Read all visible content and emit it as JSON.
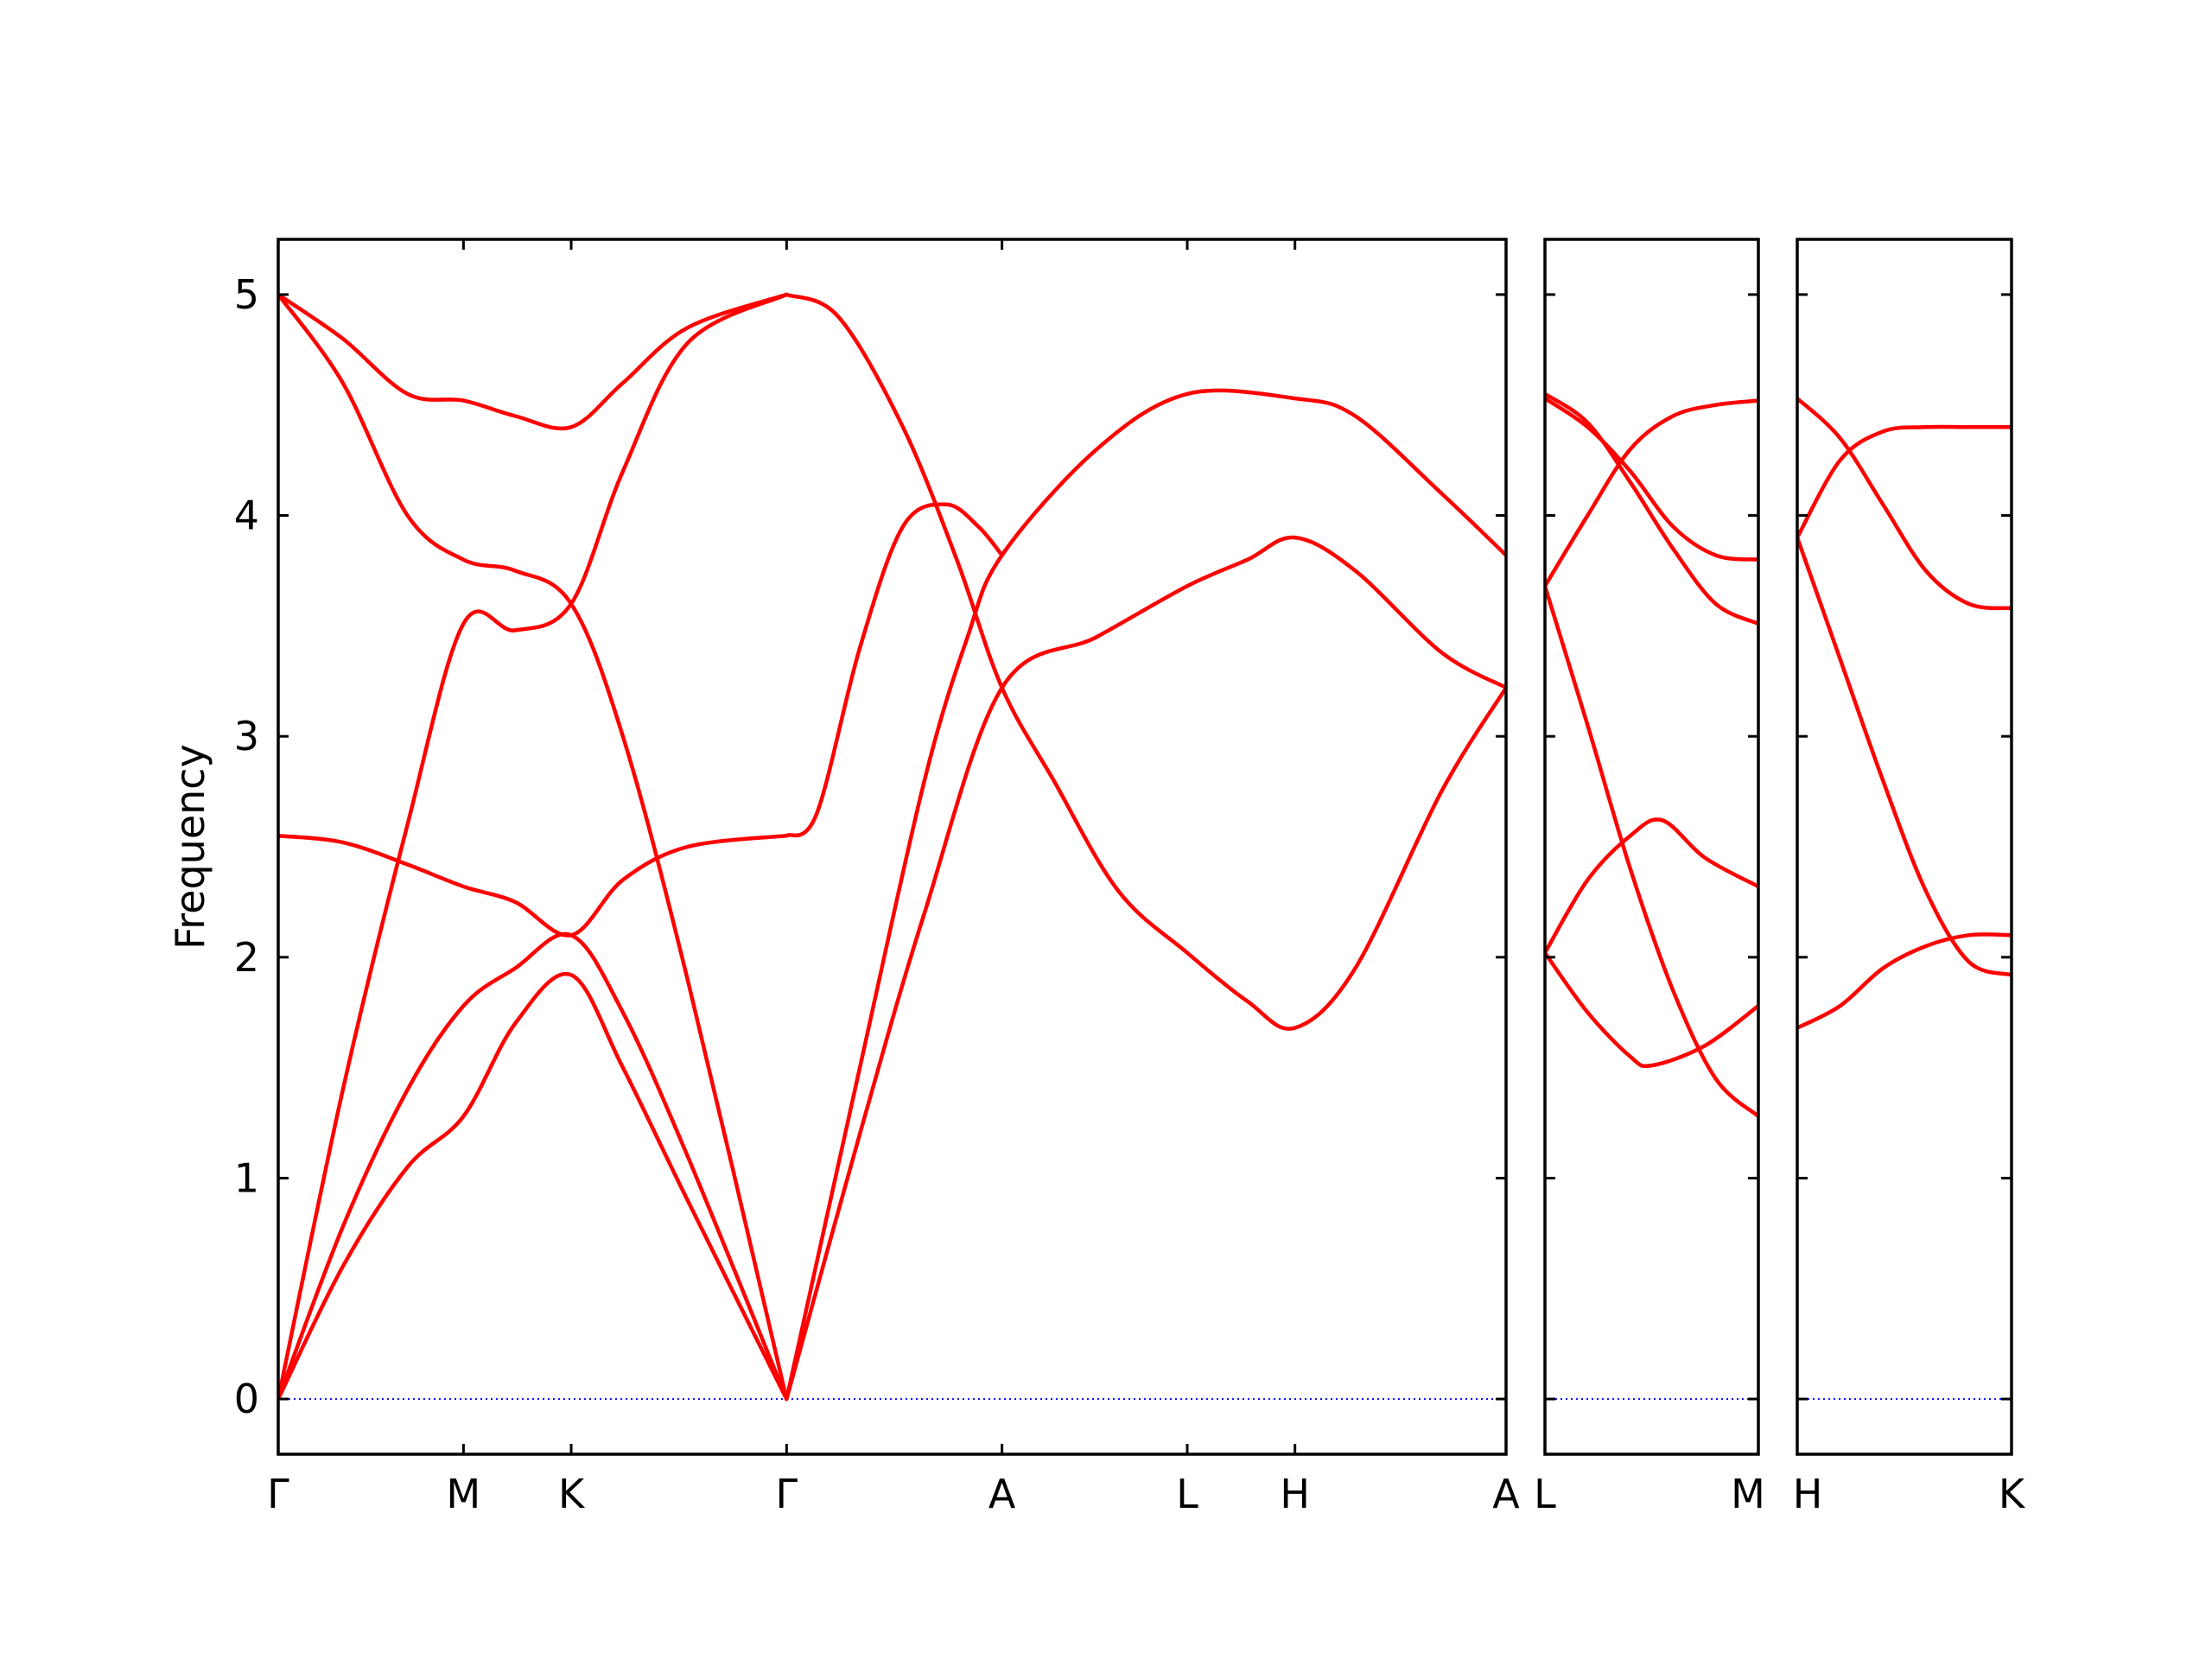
{
  "chart_data": {
    "type": "line",
    "title": "",
    "ylabel": "Frequency",
    "ylim": [
      -0.25,
      5.25
    ],
    "yticks": [
      0,
      1,
      2,
      3,
      4,
      5
    ],
    "yticklabels": [
      "0",
      "1",
      "2",
      "3",
      "4",
      "5"
    ],
    "colors": {
      "bands": "#ff0000",
      "zero_line": "#0000ff",
      "frame": "#000000"
    },
    "grid": false,
    "legend": "none",
    "panels": [
      {
        "name": "panel-1",
        "xlim": [
          0,
          5.7
        ],
        "ticks": [
          {
            "x": 0.0,
            "label": "Γ"
          },
          {
            "x": 0.86,
            "label": "M"
          },
          {
            "x": 1.36,
            "label": "K"
          },
          {
            "x": 2.36,
            "label": "Γ"
          },
          {
            "x": 3.36,
            "label": "A"
          },
          {
            "x": 4.22,
            "label": "L"
          },
          {
            "x": 4.72,
            "label": "H"
          },
          {
            "x": 5.7,
            "label": "A"
          }
        ],
        "series": [
          {
            "points": [
              [
                0,
                0
              ],
              [
                0.3,
                0.6
              ],
              [
                0.6,
                1.05
              ],
              [
                0.86,
                1.28
              ],
              [
                1.1,
                1.7
              ],
              [
                1.36,
                1.92
              ],
              [
                1.6,
                1.5
              ],
              [
                1.9,
                0.9
              ],
              [
                2.36,
                0
              ]
            ]
          },
          {
            "points": [
              [
                0,
                0
              ],
              [
                0.3,
                0.78
              ],
              [
                0.6,
                1.4
              ],
              [
                0.86,
                1.78
              ],
              [
                1.1,
                1.95
              ],
              [
                1.36,
                2.1
              ],
              [
                1.6,
                1.75
              ],
              [
                1.9,
                1.1
              ],
              [
                2.36,
                0
              ]
            ]
          },
          {
            "points": [
              [
                0,
                0
              ],
              [
                0.3,
                1.4
              ],
              [
                0.6,
                2.6
              ],
              [
                0.86,
                3.51
              ],
              [
                1.1,
                3.48
              ],
              [
                1.36,
                3.6
              ],
              [
                1.6,
                4.2
              ],
              [
                1.9,
                4.78
              ],
              [
                2.36,
                5.0
              ]
            ]
          },
          {
            "points": [
              [
                0,
                5.0
              ],
              [
                0.3,
                4.6
              ],
              [
                0.6,
                4.0
              ],
              [
                0.86,
                3.8
              ],
              [
                1.1,
                3.75
              ],
              [
                1.36,
                3.6
              ],
              [
                1.6,
                3.0
              ],
              [
                1.9,
                1.9
              ],
              [
                2.36,
                0
              ]
            ]
          },
          {
            "points": [
              [
                0,
                5.0
              ],
              [
                0.3,
                4.8
              ],
              [
                0.6,
                4.55
              ],
              [
                0.86,
                4.52
              ],
              [
                1.1,
                4.45
              ],
              [
                1.36,
                4.4
              ],
              [
                1.6,
                4.6
              ],
              [
                1.9,
                4.85
              ],
              [
                2.36,
                5.0
              ]
            ]
          },
          {
            "points": [
              [
                0,
                2.55
              ],
              [
                0.3,
                2.52
              ],
              [
                0.6,
                2.42
              ],
              [
                0.86,
                2.32
              ],
              [
                1.1,
                2.25
              ],
              [
                1.36,
                2.1
              ],
              [
                1.6,
                2.35
              ],
              [
                1.9,
                2.5
              ],
              [
                2.36,
                2.55
              ]
            ]
          },
          {
            "points": [
              [
                2.36,
                0
              ],
              [
                2.7,
                1.2
              ],
              [
                3.0,
                2.2
              ],
              [
                3.36,
                3.22
              ],
              [
                3.8,
                3.45
              ],
              [
                4.22,
                3.68
              ],
              [
                4.5,
                3.8
              ],
              [
                4.72,
                3.9
              ],
              [
                5.0,
                3.75
              ],
              [
                5.4,
                3.38
              ],
              [
                5.7,
                3.22
              ]
            ]
          },
          {
            "points": [
              [
                2.36,
                0
              ],
              [
                2.7,
                1.5
              ],
              [
                3.0,
                2.8
              ],
              [
                3.2,
                3.45
              ],
              [
                3.36,
                3.82
              ],
              [
                3.8,
                4.3
              ],
              [
                4.22,
                4.55
              ],
              [
                4.72,
                4.53
              ],
              [
                5.0,
                4.45
              ],
              [
                5.4,
                4.1
              ],
              [
                5.7,
                3.82
              ]
            ]
          },
          {
            "points": [
              [
                2.36,
                2.55
              ],
              [
                2.5,
                2.65
              ],
              [
                2.7,
                3.4
              ],
              [
                2.9,
                3.95
              ],
              [
                3.1,
                4.05
              ],
              [
                3.25,
                3.95
              ],
              [
                3.36,
                3.82
              ]
            ]
          },
          {
            "points": [
              [
                2.36,
                5.0
              ],
              [
                2.6,
                4.9
              ],
              [
                2.9,
                4.4
              ],
              [
                3.15,
                3.8
              ],
              [
                3.36,
                3.22
              ],
              [
                3.6,
                2.8
              ],
              [
                3.9,
                2.3
              ],
              [
                4.22,
                2.02
              ],
              [
                4.5,
                1.8
              ],
              [
                4.72,
                1.68
              ],
              [
                5.0,
                1.95
              ],
              [
                5.4,
                2.75
              ],
              [
                5.7,
                3.22
              ]
            ]
          }
        ]
      },
      {
        "name": "panel-2",
        "xlim": [
          0,
          1
        ],
        "ticks": [
          {
            "x": 0.0,
            "label": "L"
          },
          {
            "x": 1.0,
            "label": "M"
          }
        ],
        "series": [
          {
            "points": [
              [
                0,
                4.55
              ],
              [
                0.2,
                4.42
              ],
              [
                0.4,
                4.15
              ],
              [
                0.6,
                3.85
              ],
              [
                0.8,
                3.6
              ],
              [
                1.0,
                3.51
              ]
            ]
          },
          {
            "points": [
              [
                0,
                4.53
              ],
              [
                0.2,
                4.4
              ],
              [
                0.4,
                4.2
              ],
              [
                0.6,
                3.95
              ],
              [
                0.8,
                3.82
              ],
              [
                1.0,
                3.8
              ]
            ]
          },
          {
            "points": [
              [
                0,
                3.68
              ],
              [
                0.2,
                4.0
              ],
              [
                0.4,
                4.3
              ],
              [
                0.6,
                4.45
              ],
              [
                0.8,
                4.5
              ],
              [
                1.0,
                4.52
              ]
            ]
          },
          {
            "points": [
              [
                0,
                3.68
              ],
              [
                0.2,
                3.05
              ],
              [
                0.4,
                2.4
              ],
              [
                0.6,
                1.85
              ],
              [
                0.8,
                1.45
              ],
              [
                1.0,
                1.28
              ]
            ]
          },
          {
            "points": [
              [
                0,
                2.02
              ],
              [
                0.2,
                2.35
              ],
              [
                0.4,
                2.55
              ],
              [
                0.55,
                2.62
              ],
              [
                0.75,
                2.45
              ],
              [
                1.0,
                2.32
              ]
            ]
          },
          {
            "points": [
              [
                0,
                2.02
              ],
              [
                0.2,
                1.75
              ],
              [
                0.4,
                1.55
              ],
              [
                0.5,
                1.51
              ],
              [
                0.75,
                1.6
              ],
              [
                1.0,
                1.78
              ]
            ]
          }
        ]
      },
      {
        "name": "panel-3",
        "xlim": [
          0,
          1
        ],
        "ticks": [
          {
            "x": 0.0,
            "label": "H"
          },
          {
            "x": 1.0,
            "label": "K"
          }
        ],
        "series": [
          {
            "points": [
              [
                0,
                4.53
              ],
              [
                0.2,
                4.35
              ],
              [
                0.4,
                4.05
              ],
              [
                0.6,
                3.75
              ],
              [
                0.8,
                3.6
              ],
              [
                1.0,
                3.58
              ]
            ]
          },
          {
            "points": [
              [
                0,
                3.9
              ],
              [
                0.2,
                4.25
              ],
              [
                0.4,
                4.38
              ],
              [
                0.6,
                4.4
              ],
              [
                0.8,
                4.4
              ],
              [
                1.0,
                4.4
              ]
            ]
          },
          {
            "points": [
              [
                0,
                3.9
              ],
              [
                0.2,
                3.35
              ],
              [
                0.4,
                2.8
              ],
              [
                0.6,
                2.3
              ],
              [
                0.8,
                1.98
              ],
              [
                1.0,
                1.92
              ]
            ]
          },
          {
            "points": [
              [
                0,
                1.68
              ],
              [
                0.2,
                1.78
              ],
              [
                0.4,
                1.95
              ],
              [
                0.6,
                2.05
              ],
              [
                0.8,
                2.1
              ],
              [
                1.0,
                2.1
              ]
            ]
          }
        ]
      }
    ]
  }
}
